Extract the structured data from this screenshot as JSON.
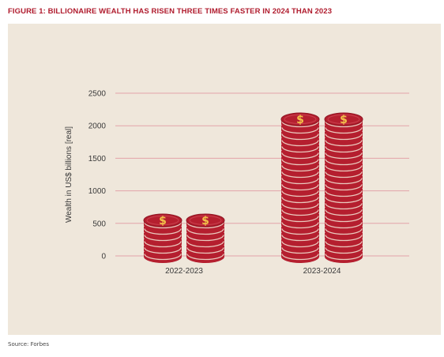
{
  "figure": {
    "title": "FIGURE 1: BILLIONAIRE WEALTH HAS RISEN THREE TIMES FASTER IN 2024 THAN 2023",
    "source": "Source: Forbes"
  },
  "colors": {
    "background": "#efe7db",
    "title": "#b01c2e",
    "coin": "#b51f2f",
    "coin_edge": "#8f1623",
    "coin_band": "#f3e6d6",
    "dollar": "#f2c24a",
    "gridline": "#e3a3a9"
  },
  "chart_data": {
    "type": "bar",
    "categories": [
      "2022-2023",
      "2023-2024"
    ],
    "values": [
      560,
      2100
    ],
    "ylabel": "Wealth in US$ billions [real]",
    "xlabel": "",
    "ylim": [
      0,
      2500
    ],
    "yticks": [
      "0",
      "500",
      "1000",
      "1500",
      "2000",
      "2500"
    ],
    "grid": true,
    "bar_style": "stacks of coins with a dollar sign on top, two stacks per category"
  }
}
